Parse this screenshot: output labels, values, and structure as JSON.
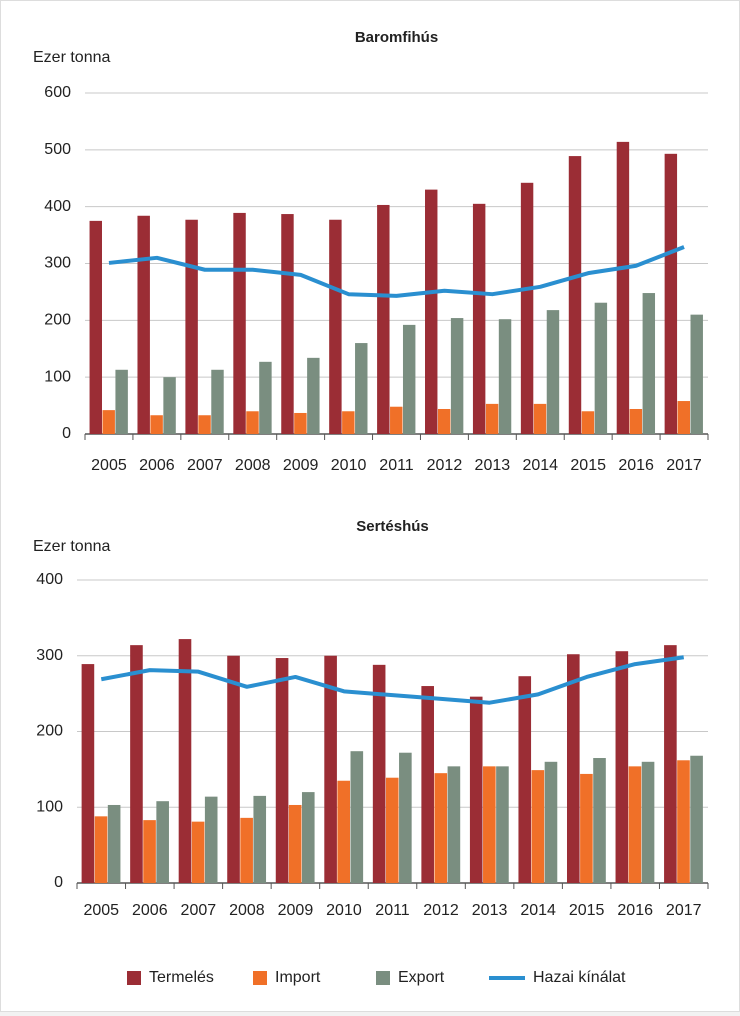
{
  "chart_data": [
    {
      "type": "bar",
      "title": "Baromfihús",
      "y_label": "Ezer tonna",
      "categories": [
        "2005",
        "2006",
        "2007",
        "2008",
        "2009",
        "2010",
        "2011",
        "2012",
        "2013",
        "2014",
        "2015",
        "2016",
        "2017"
      ],
      "ylim": [
        0,
        600
      ],
      "yticks": [
        0,
        100,
        200,
        300,
        400,
        500,
        600
      ],
      "grid": true,
      "series": [
        {
          "name": "Termelés",
          "type": "bar",
          "color": "#9b2d35",
          "values": [
            375,
            384,
            377,
            389,
            387,
            377,
            403,
            430,
            405,
            442,
            489,
            514,
            493
          ]
        },
        {
          "name": "Import",
          "type": "bar",
          "color": "#f07028",
          "values": [
            42,
            33,
            33,
            40,
            37,
            40,
            48,
            44,
            53,
            53,
            40,
            44,
            58
          ]
        },
        {
          "name": "Export",
          "type": "bar",
          "color": "#7a8e80",
          "values": [
            113,
            100,
            113,
            127,
            134,
            160,
            192,
            204,
            202,
            218,
            231,
            248,
            210
          ]
        },
        {
          "name": "Hazai kínálat",
          "type": "line",
          "color": "#2a8fd0",
          "values": [
            301,
            310,
            289,
            289,
            280,
            246,
            243,
            252,
            246,
            259,
            283,
            296,
            329
          ]
        }
      ]
    },
    {
      "type": "bar",
      "title": "Sertéshús",
      "y_label": "Ezer tonna",
      "categories": [
        "2005",
        "2006",
        "2007",
        "2008",
        "2009",
        "2010",
        "2011",
        "2012",
        "2013",
        "2014",
        "2015",
        "2016",
        "2017"
      ],
      "ylim": [
        0,
        400
      ],
      "yticks": [
        0,
        100,
        200,
        300,
        400
      ],
      "grid": true,
      "series": [
        {
          "name": "Termelés",
          "type": "bar",
          "color": "#9b2d35",
          "values": [
            289,
            314,
            322,
            300,
            297,
            300,
            288,
            260,
            246,
            273,
            302,
            306,
            314
          ]
        },
        {
          "name": "Import",
          "type": "bar",
          "color": "#f07028",
          "values": [
            88,
            83,
            81,
            86,
            103,
            135,
            139,
            145,
            154,
            149,
            144,
            154,
            162
          ]
        },
        {
          "name": "Export",
          "type": "bar",
          "color": "#7a8e80",
          "values": [
            103,
            108,
            114,
            115,
            120,
            174,
            172,
            154,
            154,
            160,
            165,
            160,
            168
          ]
        },
        {
          "name": "Hazai kínálat",
          "type": "line",
          "color": "#2a8fd0",
          "values": [
            269,
            281,
            279,
            259,
            272,
            253,
            248,
            243,
            238,
            249,
            272,
            289,
            298
          ]
        }
      ]
    }
  ]
}
